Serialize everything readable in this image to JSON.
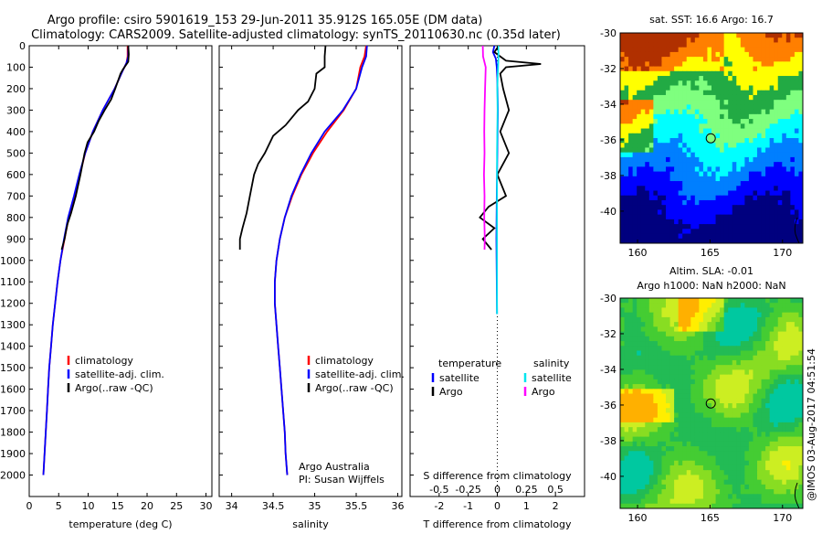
{
  "header": {
    "title_line1": "Argo profile: csiro 5901619_153 29-Jun-2011 35.912S 165.05E (DM data)",
    "title_line2": "Climatology: CARS2009. Satellite-adjusted climatology: synTS_20110630.nc (0.35d later)"
  },
  "credit": "@IMOS 03-Aug-2017 04:51:54",
  "colors": {
    "climatology": "#ff0000",
    "satellite": "#0000ff",
    "argo": "#000000",
    "sat_sal": "#00e5ee",
    "argo_sal": "#ff00ff"
  },
  "chart_data": [
    {
      "type": "line",
      "xlabel": "temperature (deg C)",
      "ylabel": "",
      "xlim": [
        0,
        31
      ],
      "ylim": [
        2100,
        0
      ],
      "xticks": [
        0,
        5,
        10,
        15,
        20,
        25,
        30
      ],
      "yticks": [
        0,
        100,
        200,
        300,
        400,
        500,
        600,
        700,
        800,
        900,
        1000,
        1100,
        1200,
        1300,
        1400,
        1500,
        1600,
        1700,
        1800,
        1900,
        2000
      ],
      "legend": [
        "climatology",
        "satellite-adj. clim.",
        "Argo(..raw -QC)"
      ],
      "series": [
        {
          "name": "climatology",
          "color": "#ff0000",
          "points": [
            [
              16.7,
              0
            ],
            [
              16.7,
              50
            ],
            [
              16.5,
              80
            ],
            [
              15.8,
              120
            ],
            [
              14.5,
              200
            ],
            [
              12.5,
              300
            ],
            [
              10.8,
              400
            ],
            [
              9.5,
              500
            ],
            [
              8.6,
              600
            ],
            [
              7.7,
              700
            ],
            [
              6.7,
              800
            ],
            [
              6.0,
              900
            ],
            [
              5.3,
              1000
            ],
            [
              4.8,
              1100
            ],
            [
              4.4,
              1200
            ],
            [
              4.0,
              1300
            ],
            [
              3.7,
              1400
            ],
            [
              3.4,
              1500
            ],
            [
              3.2,
              1600
            ],
            [
              3.0,
              1700
            ],
            [
              2.8,
              1800
            ],
            [
              2.6,
              1900
            ],
            [
              2.4,
              2000
            ]
          ]
        },
        {
          "name": "satellite-adj. clim.",
          "color": "#0000ff",
          "points": [
            [
              16.8,
              0
            ],
            [
              16.8,
              50
            ],
            [
              16.5,
              80
            ],
            [
              15.8,
              120
            ],
            [
              14.5,
              200
            ],
            [
              12.5,
              300
            ],
            [
              10.8,
              400
            ],
            [
              9.5,
              500
            ],
            [
              8.5,
              600
            ],
            [
              7.6,
              700
            ],
            [
              6.6,
              800
            ],
            [
              5.9,
              900
            ],
            [
              5.3,
              1000
            ],
            [
              4.8,
              1100
            ],
            [
              4.4,
              1200
            ],
            [
              4.0,
              1300
            ],
            [
              3.7,
              1400
            ],
            [
              3.4,
              1500
            ],
            [
              3.2,
              1600
            ],
            [
              3.0,
              1700
            ],
            [
              2.8,
              1800
            ],
            [
              2.6,
              1900
            ],
            [
              2.4,
              2000
            ]
          ]
        },
        {
          "name": "Argo(..raw -QC)",
          "color": "#000000",
          "points": [
            [
              16.8,
              0
            ],
            [
              16.9,
              40
            ],
            [
              16.8,
              75
            ],
            [
              15.9,
              110
            ],
            [
              15.5,
              130
            ],
            [
              14.6,
              200
            ],
            [
              13.9,
              250
            ],
            [
              12.8,
              300
            ],
            [
              11.8,
              350
            ],
            [
              11.0,
              400
            ],
            [
              9.9,
              450
            ],
            [
              9.4,
              500
            ],
            [
              8.7,
              600
            ],
            [
              7.9,
              700
            ],
            [
              7.1,
              780
            ],
            [
              6.5,
              830
            ],
            [
              6.2,
              870
            ],
            [
              6.0,
              900
            ],
            [
              5.5,
              950
            ]
          ]
        }
      ]
    },
    {
      "type": "line",
      "xlabel": "salinity",
      "xlim": [
        33.85,
        36.05
      ],
      "ylim": [
        2100,
        0
      ],
      "xticks": [
        34,
        34.5,
        35,
        35.5,
        36
      ],
      "legend": [
        "climatology",
        "satellite-adj. clim.",
        "Argo(..raw -QC)"
      ],
      "annotation": [
        "Argo Australia",
        "PI: Susan Wijffels"
      ],
      "series": [
        {
          "name": "climatology",
          "color": "#ff0000",
          "points": [
            [
              35.62,
              0
            ],
            [
              35.6,
              50
            ],
            [
              35.55,
              100
            ],
            [
              35.5,
              200
            ],
            [
              35.35,
              300
            ],
            [
              35.15,
              400
            ],
            [
              34.98,
              500
            ],
            [
              34.84,
              600
            ],
            [
              34.73,
              700
            ],
            [
              34.64,
              800
            ],
            [
              34.58,
              900
            ],
            [
              34.54,
              1000
            ],
            [
              34.52,
              1100
            ],
            [
              34.52,
              1200
            ],
            [
              34.54,
              1300
            ],
            [
              34.56,
              1400
            ],
            [
              34.58,
              1500
            ],
            [
              34.6,
              1600
            ],
            [
              34.62,
              1700
            ],
            [
              34.64,
              1800
            ],
            [
              34.65,
              1900
            ],
            [
              34.67,
              2000
            ]
          ]
        },
        {
          "name": "satellite-adj. clim.",
          "color": "#0000ff",
          "points": [
            [
              35.63,
              0
            ],
            [
              35.62,
              50
            ],
            [
              35.57,
              100
            ],
            [
              35.5,
              200
            ],
            [
              35.34,
              300
            ],
            [
              35.12,
              400
            ],
            [
              34.96,
              500
            ],
            [
              34.83,
              600
            ],
            [
              34.72,
              700
            ],
            [
              34.64,
              800
            ],
            [
              34.58,
              900
            ],
            [
              34.54,
              1000
            ],
            [
              34.52,
              1100
            ],
            [
              34.52,
              1200
            ],
            [
              34.54,
              1300
            ],
            [
              34.56,
              1400
            ],
            [
              34.58,
              1500
            ],
            [
              34.6,
              1600
            ],
            [
              34.62,
              1700
            ],
            [
              34.64,
              1800
            ],
            [
              34.65,
              1900
            ],
            [
              34.67,
              2000
            ]
          ]
        },
        {
          "name": "Argo(..raw -QC)",
          "color": "#000000",
          "points": [
            [
              35.13,
              0
            ],
            [
              35.12,
              50
            ],
            [
              35.12,
              100
            ],
            [
              35.02,
              130
            ],
            [
              35.0,
              200
            ],
            [
              34.92,
              260
            ],
            [
              34.8,
              300
            ],
            [
              34.65,
              370
            ],
            [
              34.5,
              420
            ],
            [
              34.4,
              500
            ],
            [
              34.32,
              550
            ],
            [
              34.27,
              600
            ],
            [
              34.22,
              700
            ],
            [
              34.18,
              780
            ],
            [
              34.13,
              850
            ],
            [
              34.1,
              900
            ],
            [
              34.1,
              950
            ]
          ]
        }
      ]
    },
    {
      "type": "line",
      "xlabel": "T difference from climatology",
      "xlabel_top": "S difference from climatology",
      "xlim": [
        -3,
        3
      ],
      "ylim": [
        2100,
        0
      ],
      "xticks": [
        -2,
        -1,
        0,
        1,
        2
      ],
      "xticks_top": [
        "-0.5",
        "-0.25",
        "0",
        "0.25",
        "0.5"
      ],
      "legend": {
        "temperature": [
          "satellite",
          "Argo"
        ],
        "salinity": [
          "satellite",
          "Argo"
        ],
        "headers": [
          "temperature",
          "salinity"
        ]
      },
      "series": [
        {
          "name": "satellite",
          "group": "temperature",
          "color": "#0000ff",
          "points": [
            [
              -0.1,
              0
            ],
            [
              -0.15,
              30
            ],
            [
              -0.05,
              60
            ],
            [
              -0.02,
              100
            ],
            [
              0,
              150
            ],
            [
              0.02,
              300
            ],
            [
              0.0,
              500
            ],
            [
              -0.02,
              700
            ],
            [
              -0.03,
              900
            ],
            [
              -0.02,
              1100
            ],
            [
              -0.01,
              1250
            ]
          ]
        },
        {
          "name": "Argo",
          "group": "temperature",
          "color": "#000000",
          "points": [
            [
              0.05,
              0
            ],
            [
              -0.1,
              30
            ],
            [
              0.3,
              70
            ],
            [
              1.5,
              85
            ],
            [
              0.3,
              100
            ],
            [
              0.1,
              130
            ],
            [
              0.2,
              200
            ],
            [
              0.4,
              300
            ],
            [
              0.1,
              400
            ],
            [
              0.4,
              500
            ],
            [
              0.0,
              600
            ],
            [
              0.3,
              700
            ],
            [
              -0.3,
              750
            ],
            [
              -0.6,
              800
            ],
            [
              -0.1,
              850
            ],
            [
              -0.5,
              900
            ],
            [
              -0.2,
              950
            ]
          ]
        },
        {
          "name": "satellite",
          "group": "salinity",
          "color": "#00e5ee",
          "points": [
            [
              0.03,
              0
            ],
            [
              0.04,
              50
            ],
            [
              0.02,
              120
            ],
            [
              0.0,
              200
            ],
            [
              0.01,
              300
            ],
            [
              0.0,
              400
            ],
            [
              -0.01,
              500
            ],
            [
              -0.01,
              700
            ],
            [
              -0.01,
              900
            ],
            [
              -0.01,
              1100
            ],
            [
              -0.01,
              1250
            ]
          ]
        },
        {
          "name": "Argo",
          "group": "salinity",
          "color": "#ff00ff",
          "points": [
            [
              -0.5,
              0
            ],
            [
              -0.49,
              50
            ],
            [
              -0.4,
              100
            ],
            [
              -0.42,
              200
            ],
            [
              -0.44,
              300
            ],
            [
              -0.45,
              400
            ],
            [
              -0.44,
              500
            ],
            [
              -0.46,
              600
            ],
            [
              -0.44,
              700
            ],
            [
              -0.45,
              800
            ],
            [
              -0.43,
              900
            ],
            [
              -0.44,
              950
            ]
          ]
        }
      ]
    },
    {
      "type": "heatmap",
      "title": "sat. SST: 16.6 Argo: 16.7",
      "xlim": [
        158.8,
        171.4
      ],
      "ylim": [
        -41.8,
        -30
      ],
      "xticks": [
        160,
        165,
        170
      ],
      "yticks": [
        -30,
        -32,
        -34,
        -36,
        -38,
        -40
      ],
      "marker": [
        165.05,
        -35.912
      ],
      "palette": [
        "#00007f",
        "#0000ff",
        "#007fff",
        "#00ffff",
        "#7fff7f",
        "#22aa44",
        "#ffff00",
        "#ff7f00",
        "#b03000"
      ]
    },
    {
      "type": "heatmap",
      "title": "Altim. SLA: -0.01",
      "subtitle": "Argo h1000: NaN h2000: NaN",
      "xlim": [
        158.8,
        171.4
      ],
      "ylim": [
        -41.8,
        -30
      ],
      "xticks": [
        160,
        165,
        170
      ],
      "yticks": [
        -30,
        -32,
        -34,
        -36,
        -38,
        -40
      ],
      "marker": [
        165.05,
        -35.912
      ],
      "palette": [
        "#00c8a0",
        "#22bb55",
        "#44cc33",
        "#88dd22",
        "#ccee22",
        "#ffee00",
        "#ffb000"
      ]
    }
  ]
}
